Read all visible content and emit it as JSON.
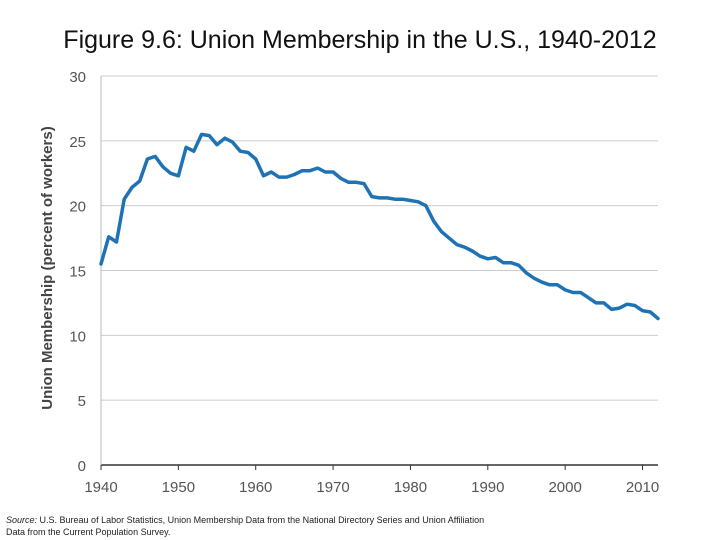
{
  "title": "Figure 9.6: Union Membership in the U.S., 1940-2012",
  "source": {
    "prefix": "Source:",
    "text": " U.S. Bureau of Labor Statistics, Union Membership Data from the National Directory Series and Union Affiliation",
    "text2": "Data from the Current Population Survey."
  },
  "chart_data": {
    "type": "line",
    "ylabel": "Union Membership (percent of workers)",
    "xlabel": "",
    "xlim": [
      1940,
      2012
    ],
    "ylim": [
      0,
      30
    ],
    "x_ticks": [
      "1940",
      "1950",
      "1960",
      "1970",
      "1980",
      "1990",
      "2000",
      "2010"
    ],
    "y_ticks": [
      "0",
      "5",
      "10",
      "15",
      "20",
      "25",
      "30"
    ],
    "grid": "horizontal",
    "line_color": "#1f73b4",
    "series": [
      {
        "x": [
          1940,
          1941,
          1942,
          1943,
          1944,
          1945,
          1946,
          1947,
          1948,
          1949,
          1950,
          1951,
          1952,
          1953,
          1954,
          1955,
          1956,
          1957,
          1958,
          1959,
          1960,
          1961,
          1962,
          1963,
          1964,
          1965,
          1966,
          1967,
          1968,
          1969,
          1970,
          1971,
          1972,
          1973,
          1974,
          1975,
          1976,
          1977,
          1978,
          1979,
          1980,
          1981,
          1982,
          1983,
          1984,
          1985,
          1986,
          1987,
          1988,
          1989,
          1990,
          1991,
          1992,
          1993,
          1994,
          1995,
          1996,
          1997,
          1998,
          1999,
          2000,
          2001,
          2002,
          2003,
          2004,
          2005,
          2006,
          2007,
          2008,
          2009,
          2010,
          2011,
          2012
        ],
        "values": [
          15.5,
          17.6,
          17.2,
          20.5,
          21.4,
          21.9,
          23.6,
          23.8,
          23.0,
          22.5,
          22.3,
          24.5,
          24.2,
          25.5,
          25.4,
          24.7,
          25.2,
          24.9,
          24.2,
          24.1,
          23.6,
          22.3,
          22.6,
          22.2,
          22.2,
          22.4,
          22.7,
          22.7,
          22.9,
          22.6,
          22.6,
          22.1,
          21.8,
          21.8,
          21.7,
          20.7,
          20.6,
          20.6,
          20.5,
          20.5,
          20.4,
          20.3,
          20.0,
          18.8,
          18.0,
          17.5,
          17.0,
          16.8,
          16.5,
          16.1,
          15.9,
          16.0,
          15.6,
          15.6,
          15.4,
          14.8,
          14.4,
          14.1,
          13.9,
          13.9,
          13.5,
          13.3,
          13.3,
          12.9,
          12.5,
          12.5,
          12.0,
          12.1,
          12.4,
          12.3,
          11.9,
          11.8,
          11.3
        ]
      }
    ]
  }
}
